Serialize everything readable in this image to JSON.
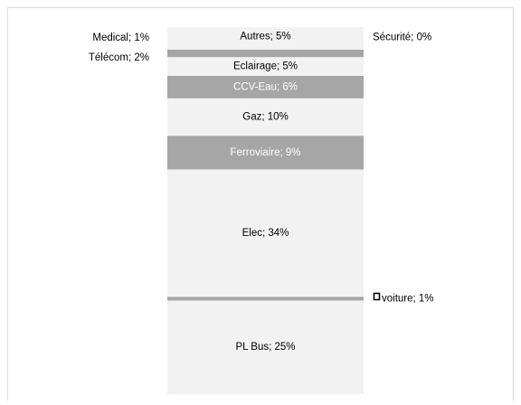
{
  "chart_data": {
    "type": "stacked-column",
    "values": [
      25,
      1,
      34,
      9,
      10,
      6,
      5,
      2,
      1,
      0,
      5
    ],
    "value_labels": [
      "PL Bus; 25%",
      "voiture; 1%",
      "Elec; 34%",
      "Ferroviaire; 9%",
      "Gaz; 10%",
      "CCV-Eau; 6%",
      "Eclairage; 5%",
      "Télécom; 2%",
      "Medical; 1%",
      "Sécurité; 0%",
      "Autres; 5%"
    ],
    "colors": [
      "#f2f2f2",
      "#a6a6a6",
      "#f2f2f2",
      "#a6a6a6",
      "#f2f2f2",
      "#a6a6a6",
      "#f2f2f2",
      "#a6a6a6",
      "#f2f2f2",
      "#a6a6a6",
      "#f2f2f2"
    ],
    "label_positions": [
      "inside",
      "right",
      "inside",
      "inside",
      "inside",
      "inside",
      "inside",
      "left",
      "left",
      "right",
      "inside"
    ]
  }
}
